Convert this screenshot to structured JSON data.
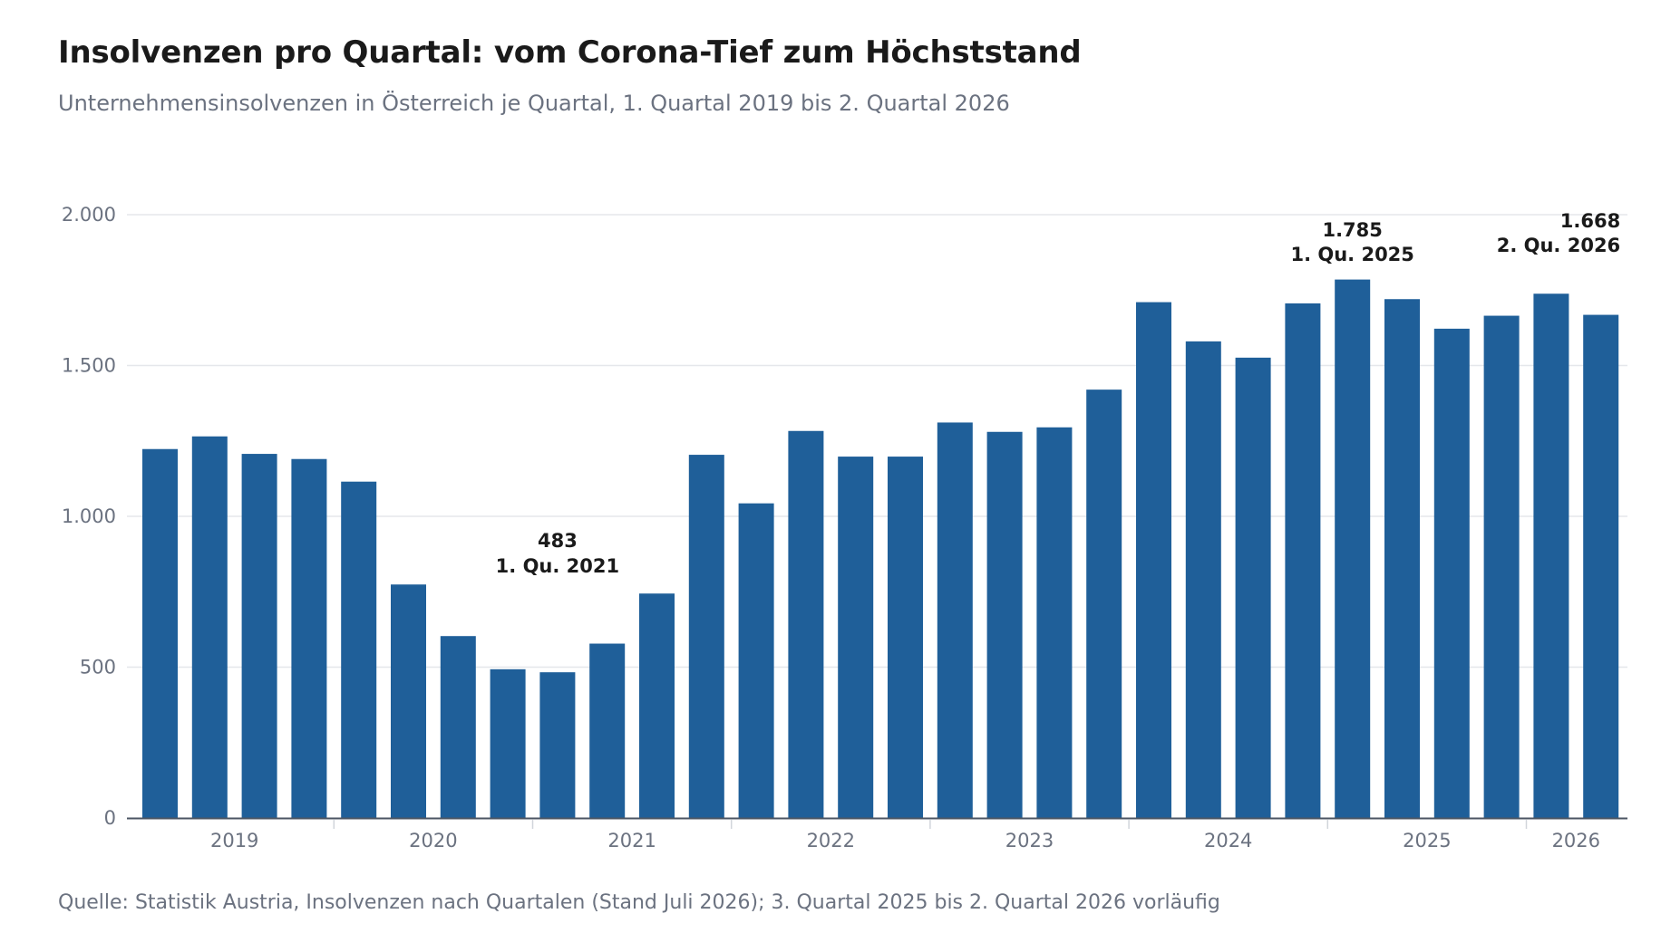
{
  "title": "Insolvenzen pro Quartal: vom Corona-Tief zum Höchststand",
  "subtitle": "Unternehmensinsolvenzen in Österreich je Quartal, 1. Quartal 2019 bis 2. Quartal 2026",
  "source": "Quelle: Statistik Austria, Insolvenzen nach Quartalen (Stand Juli 2026); 3. Quartal 2025 bis 2. Quartal 2026 vorläufig",
  "colors": {
    "bar": "#1f5f99",
    "grid": "#e5e7eb",
    "axis": "#4b5563",
    "tick_text": "#6b7280"
  },
  "chart_data": {
    "type": "bar",
    "categories": [
      "1. Qu. 2019",
      "2. Qu. 2019",
      "3. Qu. 2019",
      "4. Qu. 2019",
      "1. Qu. 2020",
      "2. Qu. 2020",
      "3. Qu. 2020",
      "4. Qu. 2020",
      "1. Qu. 2021",
      "2. Qu. 2021",
      "3. Qu. 2021",
      "4. Qu. 2021",
      "1. Qu. 2022",
      "2. Qu. 2022",
      "3. Qu. 2022",
      "4. Qu. 2022",
      "1. Qu. 2023",
      "2. Qu. 2023",
      "3. Qu. 2023",
      "4. Qu. 2023",
      "1. Qu. 2024",
      "2. Qu. 2024",
      "3. Qu. 2024",
      "4. Qu. 2024",
      "1. Qu. 2025",
      "2. Qu. 2025",
      "3. Qu. 2025",
      "4. Qu. 2025",
      "1. Qu. 2026",
      "2. Qu. 2026"
    ],
    "values": [
      1223,
      1265,
      1207,
      1190,
      1115,
      774,
      603,
      493,
      483,
      578,
      744,
      1204,
      1043,
      1283,
      1198,
      1198,
      1311,
      1280,
      1295,
      1420,
      1710,
      1580,
      1526,
      1706,
      1785,
      1720,
      1622,
      1665,
      1738,
      1668
    ],
    "ylim": [
      0,
      2000
    ],
    "yticks": [
      0,
      500,
      1000,
      1500,
      2000
    ],
    "ytick_labels": [
      "0",
      "500",
      "1.000",
      "1.500",
      "2.000"
    ],
    "xtick_labels": [
      "2019",
      "2020",
      "2021",
      "2022",
      "2023",
      "2024",
      "2025",
      "2026"
    ],
    "grid": true,
    "legend": "none",
    "annotations": [
      {
        "index": 8,
        "value_label": "483",
        "period_label": "1. Qu. 2021"
      },
      {
        "index": 24,
        "value_label": "1.785",
        "period_label": "1. Qu. 2025"
      },
      {
        "index": 29,
        "value_label": "1.668",
        "period_label": "2. Qu. 2026"
      }
    ]
  }
}
